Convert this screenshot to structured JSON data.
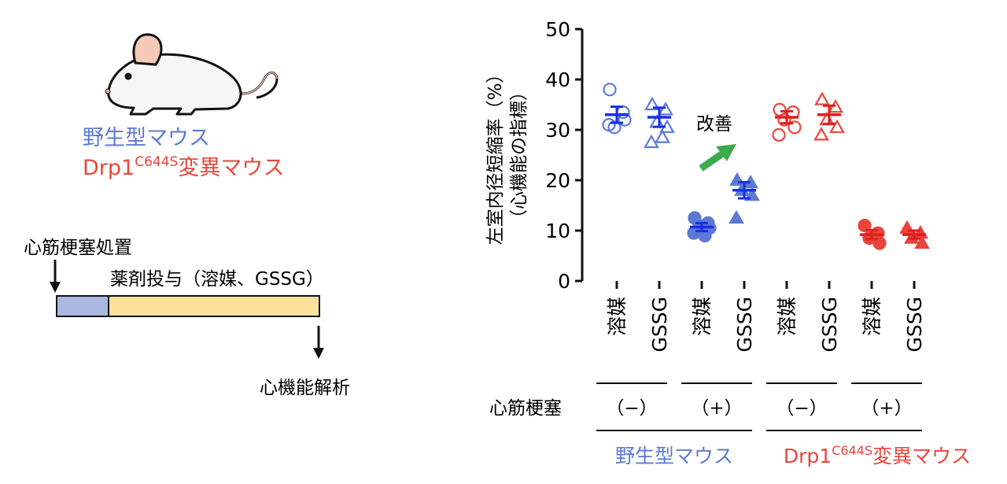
{
  "left_panel": {
    "wt_label": "野生型マウス",
    "mut_prefix": "Drp1",
    "mut_sup": "C644S",
    "mut_suffix": "変異マウス",
    "mi_label": "心筋梗塞処置",
    "drug_label": "薬剤投与（溶媒、GSSG）",
    "analysis_label": "心機能解析"
  },
  "colors": {
    "wt": "#5c79d6",
    "wt_dark": "#1a2ee6",
    "mut": "#e8463d",
    "mut_dark": "#e01f1f",
    "bar_blue": "#a9b8df",
    "bar_yellow": "#fbe29a",
    "improve_arrow": "#3daa4d"
  },
  "chart_data": {
    "type": "scatter",
    "ylabel_line1": "左室内径短縮率（%）",
    "ylabel_line2": "（心機能の指標）",
    "ylim": [
      0,
      50
    ],
    "yticks": [
      "0",
      "10",
      "20",
      "30",
      "40",
      "50"
    ],
    "categories": [
      "溶媒",
      "GSSG",
      "溶媒",
      "GSSG",
      "溶媒",
      "GSSG",
      "溶媒",
      "GSSG"
    ],
    "groups": [
      {
        "strain": "wt",
        "mi": "−",
        "drug": "溶媒",
        "marker": "circle-open",
        "mean": 33.0,
        "sem": 1.6,
        "points": [
          38.0,
          33.5,
          30.5,
          32.0,
          31.0
        ]
      },
      {
        "strain": "wt",
        "mi": "−",
        "drug": "GSSG",
        "marker": "triangle-open",
        "mean": 32.5,
        "sem": 1.9,
        "points": [
          35.0,
          34.0,
          31.5,
          30.5,
          27.5,
          28.5
        ]
      },
      {
        "strain": "wt",
        "mi": "+",
        "drug": "溶媒",
        "marker": "circle-filled",
        "mean": 10.7,
        "sem": 0.8,
        "points": [
          12.5,
          11.5,
          11.0,
          10.5,
          9.5,
          9.0
        ]
      },
      {
        "strain": "wt",
        "mi": "+",
        "drug": "GSSG",
        "marker": "triangle-filled",
        "mean": 18.0,
        "sem": 1.6,
        "points": [
          20.0,
          19.5,
          18.0,
          17.0,
          12.5
        ]
      },
      {
        "strain": "mut",
        "mi": "−",
        "drug": "溶媒",
        "marker": "circle-open",
        "mean": 32.5,
        "sem": 1.2,
        "points": [
          34.0,
          33.5,
          32.0,
          30.5,
          29.0
        ]
      },
      {
        "strain": "mut",
        "mi": "−",
        "drug": "GSSG",
        "marker": "triangle-open",
        "mean": 33.0,
        "sem": 1.8,
        "points": [
          36.0,
          34.5,
          32.0,
          30.5,
          29.0
        ]
      },
      {
        "strain": "mut",
        "mi": "+",
        "drug": "溶媒",
        "marker": "circle-filled",
        "mean": 9.2,
        "sem": 0.9,
        "points": [
          11.0,
          9.5,
          8.5,
          7.5
        ]
      },
      {
        "strain": "mut",
        "mi": "+",
        "drug": "GSSG",
        "marker": "triangle-filled",
        "mean": 9.2,
        "sem": 0.8,
        "points": [
          10.5,
          9.5,
          8.5,
          7.5
        ]
      }
    ],
    "annotation": "改善",
    "mi_row_label": "心筋梗塞",
    "mi_labels": [
      "（−）",
      "（+）",
      "（−）",
      "（+）"
    ],
    "strain_labels": {
      "wt": "野生型マウス",
      "mut_prefix": "Drp1",
      "mut_sup": "C644S",
      "mut_suffix": "変異マウス"
    }
  }
}
